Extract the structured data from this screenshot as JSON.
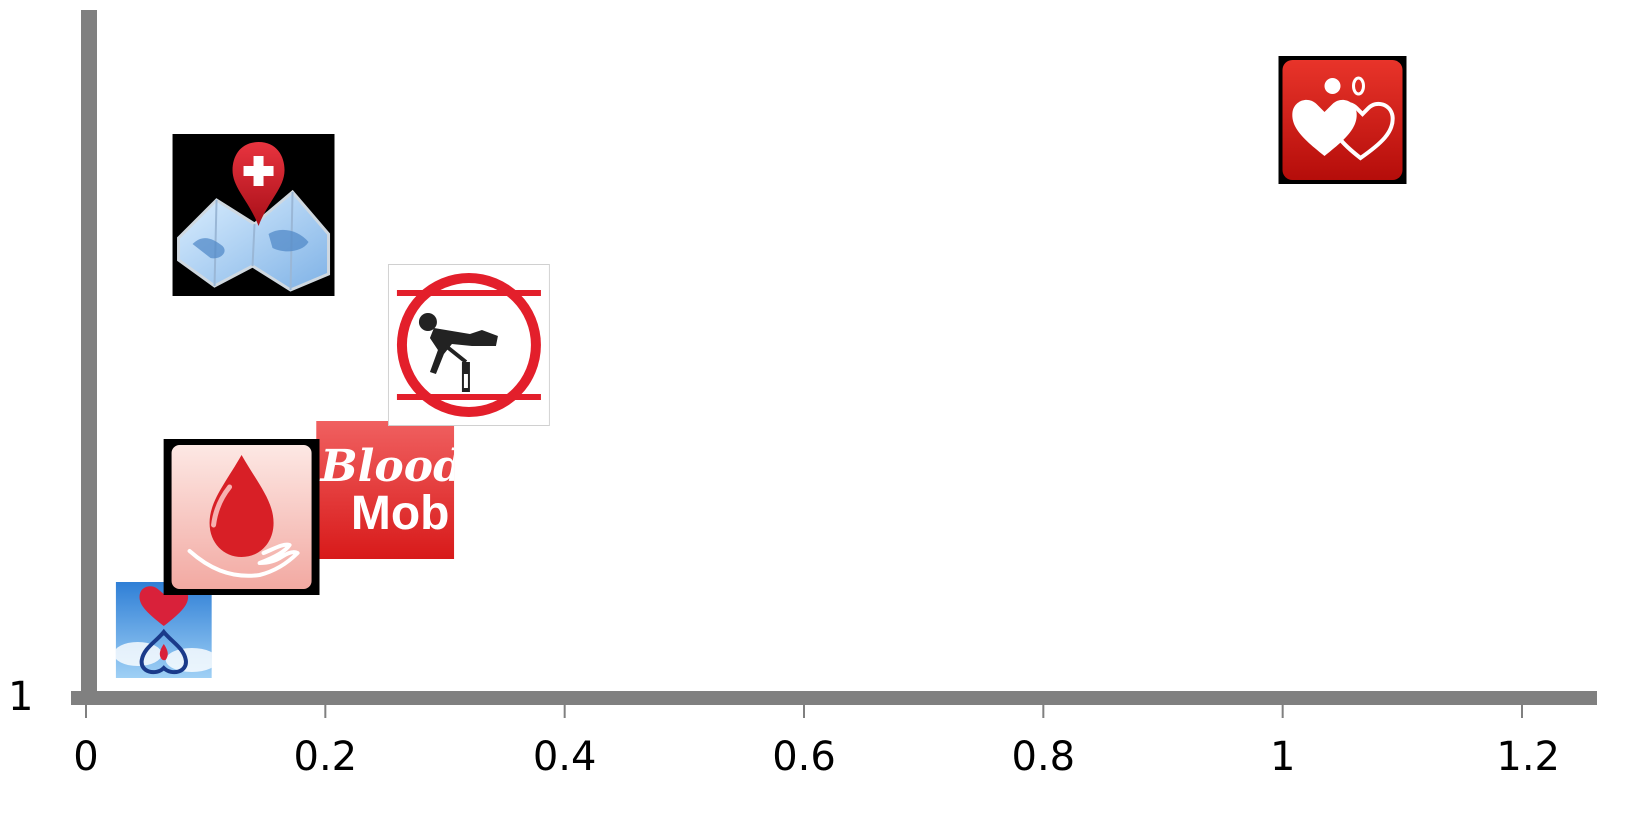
{
  "chart_data": {
    "type": "scatter",
    "title": "",
    "xlabel": "",
    "ylabel": "",
    "xlim": [
      0,
      1.2
    ],
    "x_ticks": [
      0,
      0.2,
      0.4,
      0.6,
      0.8,
      1,
      1.2
    ],
    "x_tick_labels": [
      "0",
      "0.2",
      "0.4",
      "0.6",
      "0.8",
      "1",
      "1.2"
    ],
    "y_tick_labels": [
      "1"
    ],
    "grid": false,
    "legend": "none",
    "axis_color": "#808080",
    "points": [
      {
        "icon": "heart-drop-sky-icon",
        "x": 0.065
      },
      {
        "icon": "blood-drop-hand-icon",
        "x": 0.13
      },
      {
        "icon": "blood-mob-icon",
        "x": 0.25
      },
      {
        "icon": "map-pin-cross-icon",
        "x": 0.14
      },
      {
        "icon": "patient-transfusion-icon",
        "x": 0.32
      },
      {
        "icon": "two-hearts-icon",
        "x": 1.05
      }
    ],
    "icon_labels": {
      "blood": "Blood",
      "mob": "Mob"
    }
  }
}
